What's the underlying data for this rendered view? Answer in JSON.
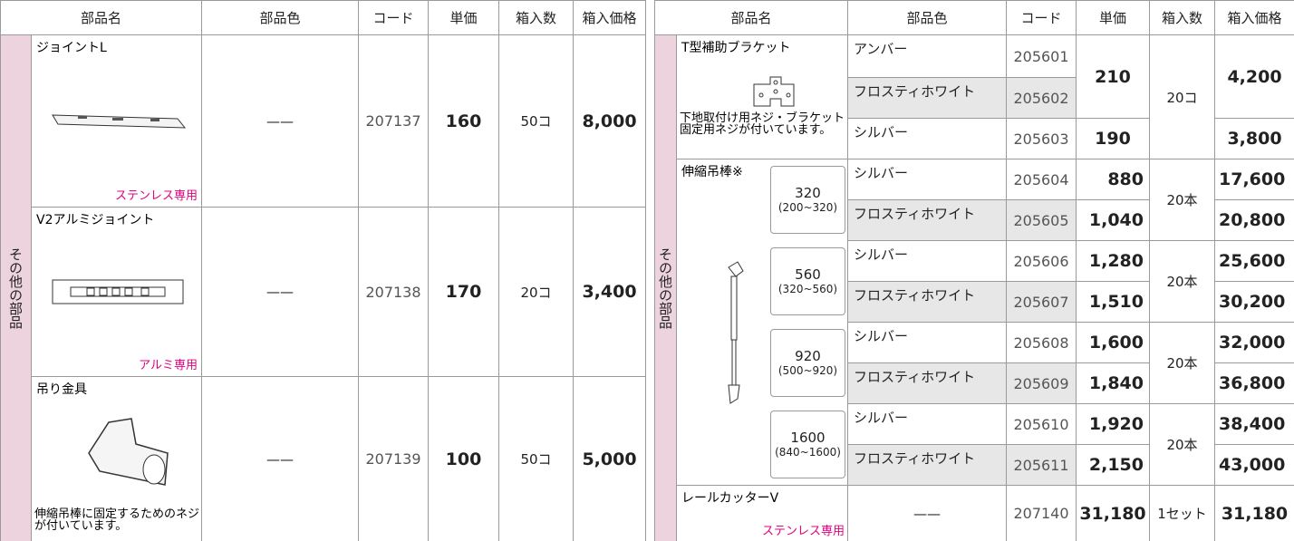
{
  "left": {
    "headers": [
      "部品名",
      "部品色",
      "コード",
      "単価",
      "箱入数",
      "箱入価格"
    ],
    "side_label": "その他の部品",
    "rows": [
      {
        "name": "ジョイントL",
        "note": "ステンレス専用",
        "color": "——",
        "code": "207137",
        "price": "160",
        "qty": "50コ",
        "box_price": "8,000"
      },
      {
        "name": "V2アルミジョイント",
        "note": "アルミ専用",
        "color": "——",
        "code": "207138",
        "price": "170",
        "qty": "20コ",
        "box_price": "3,400"
      },
      {
        "name": "吊り金具",
        "note": "伸縮吊棒に固定するためのネジが付いています。",
        "color": "——",
        "code": "207139",
        "price": "100",
        "qty": "50コ",
        "box_price": "5,000"
      }
    ]
  },
  "right": {
    "headers": [
      "部品名",
      "部品色",
      "コード",
      "単価",
      "箱入数",
      "箱入価格"
    ],
    "side_label": "その他の部品",
    "bracket": {
      "name": "T型補助ブラケット",
      "note": "下地取付け用ネジ・ブラケット固定用ネジが付いています。",
      "variants": [
        {
          "color": "アンバー",
          "code": "205601"
        },
        {
          "color": "フロスティホワイト",
          "code": "205602"
        },
        {
          "color": "シルバー",
          "code": "205603"
        }
      ],
      "prices": [
        "210",
        "190"
      ],
      "qty": "20コ",
      "box_prices": [
        "4,200",
        "3,800"
      ]
    },
    "rod": {
      "name": "伸縮吊棒※",
      "sizes": [
        {
          "length": "320",
          "range": "(200~320)",
          "qty": "20本",
          "variants": [
            {
              "color": "シルバー",
              "code": "205604",
              "price": "880",
              "box_price": "17,600"
            },
            {
              "color": "フロスティホワイト",
              "code": "205605",
              "price": "1,040",
              "box_price": "20,800"
            }
          ]
        },
        {
          "length": "560",
          "range": "(320~560)",
          "qty": "20本",
          "variants": [
            {
              "color": "シルバー",
              "code": "205606",
              "price": "1,280",
              "box_price": "25,600"
            },
            {
              "color": "フロスティホワイト",
              "code": "205607",
              "price": "1,510",
              "box_price": "30,200"
            }
          ]
        },
        {
          "length": "920",
          "range": "(500~920)",
          "qty": "20本",
          "variants": [
            {
              "color": "シルバー",
              "code": "205608",
              "price": "1,600",
              "box_price": "32,000"
            },
            {
              "color": "フロスティホワイト",
              "code": "205609",
              "price": "1,840",
              "box_price": "36,800"
            }
          ]
        },
        {
          "length": "1600",
          "range": "(840~1600)",
          "qty": "20本",
          "variants": [
            {
              "color": "シルバー",
              "code": "205610",
              "price": "1,920",
              "box_price": "38,400"
            },
            {
              "color": "フロスティホワイト",
              "code": "205611",
              "price": "2,150",
              "box_price": "43,000"
            }
          ]
        }
      ]
    },
    "cutter": {
      "name": "レールカッターV",
      "note": "ステンレス専用",
      "color": "——",
      "code": "207140",
      "price": "31,180",
      "qty": "1セット",
      "box_price": "31,180"
    }
  }
}
